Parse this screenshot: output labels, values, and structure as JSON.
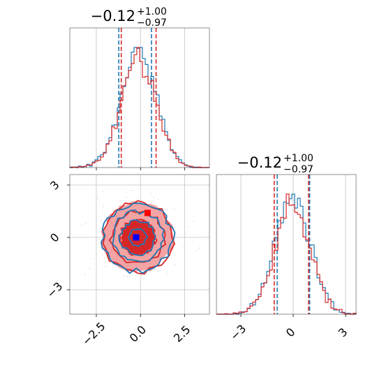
{
  "colors": {
    "series_a": "#1f77b4",
    "series_b": "#d62728",
    "series_b_fill_light": "#f3a3a3",
    "series_b_fill_dark": "#d62728",
    "marker_a": "#0000ff",
    "marker_b": "#ff0000",
    "grid": "#b0b0b0"
  },
  "chart_data": [
    {
      "type": "histogram",
      "panel": "top-left",
      "title": {
        "value": "−0.12",
        "upper": "+1.00",
        "lower": "−0.97"
      },
      "xlim": [
        -4.0,
        3.9
      ],
      "grid": true,
      "series": [
        {
          "color": "series_a",
          "quantiles": [
            -1.23,
            0.62
          ]
        },
        {
          "color": "series_b",
          "quantiles": [
            -1.09,
            0.88
          ]
        }
      ],
      "density": "gaussian",
      "center": -0.12,
      "sigma": 0.99
    },
    {
      "type": "contour",
      "panel": "bottom-left",
      "xlim": [
        -4.0,
        3.9
      ],
      "ylim": [
        -4.4,
        3.6
      ],
      "xticks": [
        "−2.5",
        "0.0",
        "2.5"
      ],
      "xtick_values": [
        -2.5,
        0.0,
        2.5
      ],
      "yticks": [
        "3",
        "0",
        "−3"
      ],
      "ytick_values": [
        3,
        0,
        -3
      ],
      "grid": true,
      "levels": [
        0.5,
        1.0,
        1.5,
        2.0
      ],
      "markers": [
        {
          "x": 0.4,
          "y": 1.4,
          "color": "marker_b",
          "shape": "square"
        },
        {
          "x": -0.25,
          "y": 0.0,
          "color": "marker_a",
          "shape": "square"
        }
      ]
    },
    {
      "type": "histogram",
      "panel": "bottom-right",
      "title": {
        "value": "−0.12",
        "upper": "+1.00",
        "lower": "−0.97"
      },
      "xlim": [
        -4.4,
        3.6
      ],
      "xticks": [
        "−3",
        "0",
        "3"
      ],
      "xtick_values": [
        -3,
        0,
        3
      ],
      "grid": true,
      "series": [
        {
          "color": "series_a",
          "quantiles": [
            -0.92,
            0.94
          ]
        },
        {
          "color": "series_b",
          "quantiles": [
            -1.09,
            0.88
          ]
        }
      ],
      "density": "gaussian",
      "center": -0.05,
      "sigma": 1.0
    }
  ]
}
